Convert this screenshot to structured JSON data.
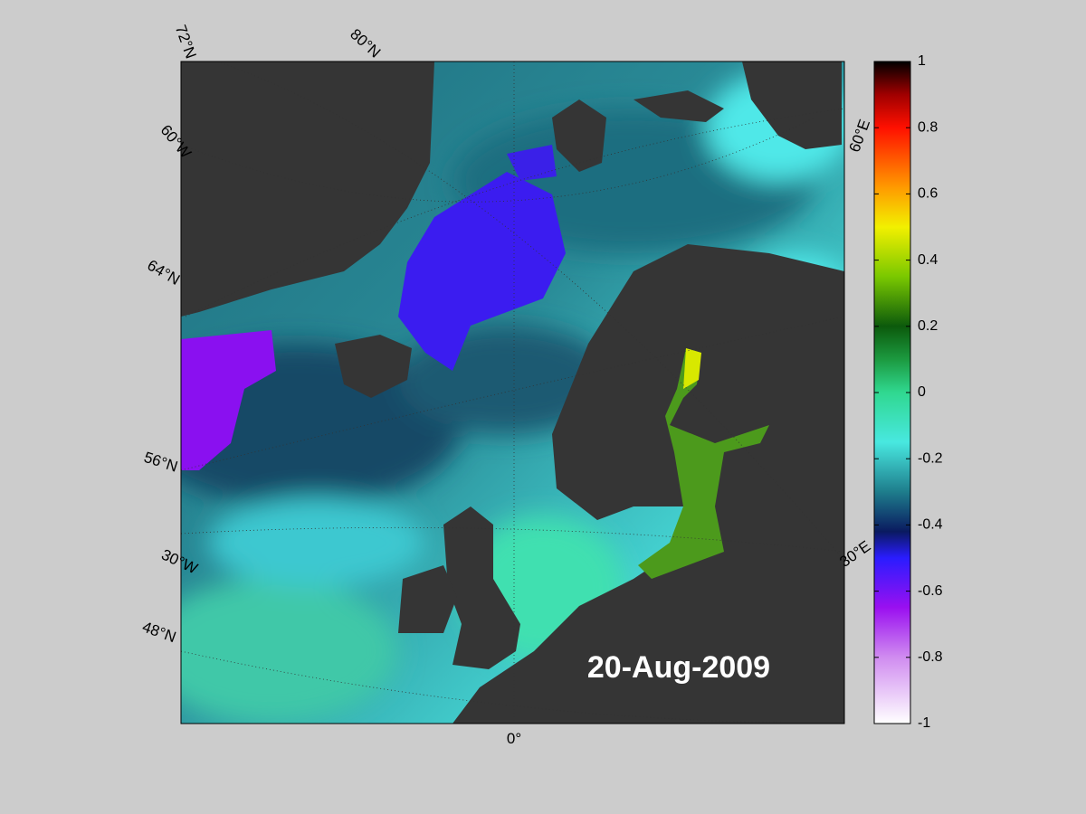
{
  "map": {
    "date": "20-Aug-2009",
    "grid_labels": [
      "72°N",
      "80°N",
      "60°W",
      "64°N",
      "56°N",
      "30°W",
      "48°N",
      "0°",
      "60°E",
      "30°E"
    ]
  },
  "colorbar": {
    "ylim": [
      -1,
      1
    ],
    "yticks": [
      1,
      0.8,
      0.6,
      0.4,
      0.2,
      0,
      -0.2,
      -0.4,
      -0.6,
      -0.8,
      -1
    ],
    "colormap": [
      {
        "value": -1,
        "color": "#ffffff"
      },
      {
        "value": -0.8,
        "color": "#d08cf0"
      },
      {
        "value": -0.65,
        "color": "#9a10f0"
      },
      {
        "value": -0.5,
        "color": "#2a1cff"
      },
      {
        "value": -0.42,
        "color": "#0a1a60"
      },
      {
        "value": -0.3,
        "color": "#1e7d8c"
      },
      {
        "value": -0.15,
        "color": "#48e8e0"
      },
      {
        "value": 0,
        "color": "#30d890"
      },
      {
        "value": 0.1,
        "color": "#1c9a40"
      },
      {
        "value": 0.2,
        "color": "#0c5a0c"
      },
      {
        "value": 0.35,
        "color": "#7ac800"
      },
      {
        "value": 0.5,
        "color": "#f2f000"
      },
      {
        "value": 0.62,
        "color": "#ff9a00"
      },
      {
        "value": 0.8,
        "color": "#ff1000"
      },
      {
        "value": 0.9,
        "color": "#a00000"
      },
      {
        "value": 1,
        "color": "#000000"
      }
    ]
  }
}
